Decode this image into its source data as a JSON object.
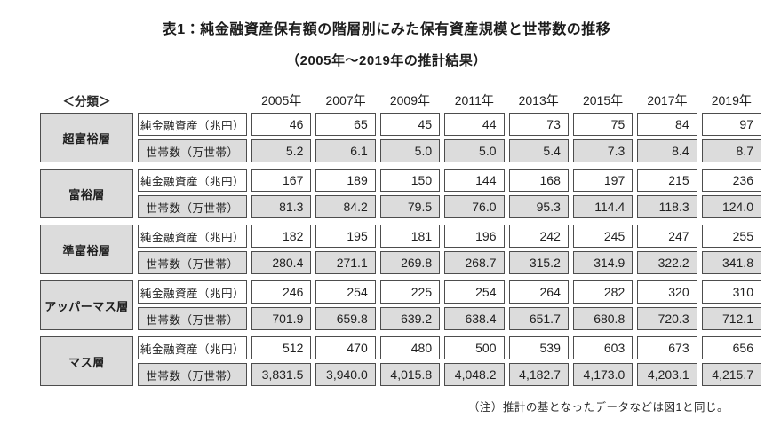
{
  "title": "表1：純金融資産保有額の階層別にみた保有資産規模と世帯数の推移",
  "subtitle": "（2005年～2019年の推計結果）",
  "table": {
    "classification_header": "＜分類＞",
    "years": [
      "2005年",
      "2007年",
      "2009年",
      "2011年",
      "2013年",
      "2015年",
      "2017年",
      "2019年"
    ],
    "row_labels": {
      "assets": "純金融資産（兆円）",
      "households": "世帯数（万世帯）"
    },
    "groups": [
      {
        "category": "超富裕層",
        "assets": [
          "46",
          "65",
          "45",
          "44",
          "73",
          "75",
          "84",
          "97"
        ],
        "households": [
          "5.2",
          "6.1",
          "5.0",
          "5.0",
          "5.4",
          "7.3",
          "8.4",
          "8.7"
        ]
      },
      {
        "category": "富裕層",
        "assets": [
          "167",
          "189",
          "150",
          "144",
          "168",
          "197",
          "215",
          "236"
        ],
        "households": [
          "81.3",
          "84.2",
          "79.5",
          "76.0",
          "95.3",
          "114.4",
          "118.3",
          "124.0"
        ]
      },
      {
        "category": "準富裕層",
        "assets": [
          "182",
          "195",
          "181",
          "196",
          "242",
          "245",
          "247",
          "255"
        ],
        "households": [
          "280.4",
          "271.1",
          "269.8",
          "268.7",
          "315.2",
          "314.9",
          "322.2",
          "341.8"
        ]
      },
      {
        "category": "アッパーマス層",
        "assets": [
          "246",
          "254",
          "225",
          "254",
          "264",
          "282",
          "320",
          "310"
        ],
        "households": [
          "701.9",
          "659.8",
          "639.2",
          "638.4",
          "651.7",
          "680.8",
          "720.3",
          "712.1"
        ]
      },
      {
        "category": "マス層",
        "assets": [
          "512",
          "470",
          "480",
          "500",
          "539",
          "603",
          "673",
          "656"
        ],
        "households": [
          "3,831.5",
          "3,940.0",
          "4,015.8",
          "4,048.2",
          "4,182.7",
          "4,173.0",
          "4,203.1",
          "4,215.7"
        ]
      }
    ]
  },
  "footnote": "（注）推計の基となったデータなどは図1と同じ。",
  "colors": {
    "cell_gray": "#dcdcdc",
    "border": "#4d4d4d",
    "text": "#1f1f1f",
    "background": "#ffffff"
  }
}
